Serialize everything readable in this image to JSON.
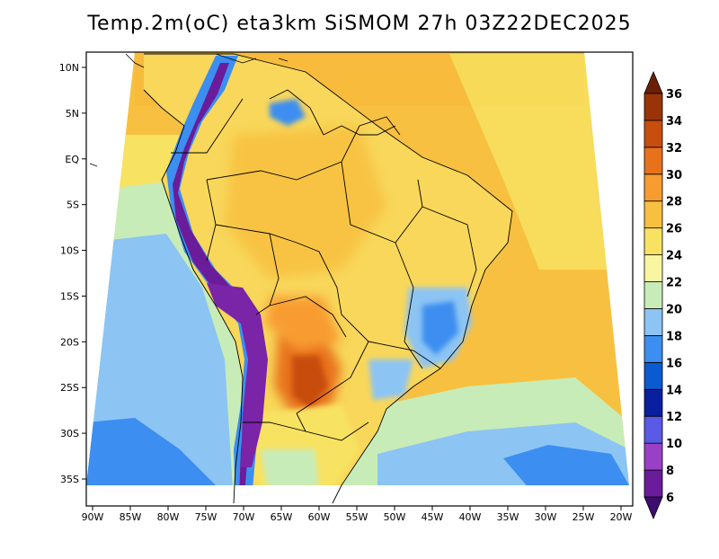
{
  "title": "Temp.2m(oC) eta3km SiSMOM 27h 03Z22DEC2025",
  "y_axis": {
    "labels": [
      "10N",
      "5N",
      "EQ",
      "5S",
      "10S",
      "15S",
      "20S",
      "25S",
      "30S",
      "35S"
    ],
    "values": [
      10,
      5,
      0,
      -5,
      -10,
      -15,
      -20,
      -25,
      -30,
      -35
    ]
  },
  "x_axis": {
    "labels": [
      "90W",
      "85W",
      "80W",
      "75W",
      "70W",
      "65W",
      "60W",
      "55W",
      "50W",
      "45W",
      "40W",
      "35W",
      "30W",
      "25W",
      "20W"
    ],
    "values": [
      -90,
      -85,
      -80,
      -75,
      -70,
      -65,
      -60,
      -55,
      -50,
      -45,
      -40,
      -35,
      -30,
      -25,
      -20
    ]
  },
  "colorbar": {
    "labels": [
      "6",
      "8",
      "10",
      "12",
      "14",
      "16",
      "18",
      "20",
      "22",
      "24",
      "26",
      "28",
      "30",
      "32",
      "34",
      "36"
    ],
    "bins": [
      {
        "min": null,
        "max": 6,
        "color": "#3c0c6e"
      },
      {
        "min": 6,
        "max": 8,
        "color": "#6a1c9a"
      },
      {
        "min": 8,
        "max": 10,
        "color": "#9a40c6"
      },
      {
        "min": 10,
        "max": 12,
        "color": "#5a5ae6"
      },
      {
        "min": 12,
        "max": 14,
        "color": "#0a1ea0"
      },
      {
        "min": 14,
        "max": 16,
        "color": "#0a5ad0"
      },
      {
        "min": 16,
        "max": 18,
        "color": "#3c8ef0"
      },
      {
        "min": 18,
        "max": 20,
        "color": "#8cc4f4"
      },
      {
        "min": 20,
        "max": 22,
        "color": "#c8ecb8"
      },
      {
        "min": 22,
        "max": 24,
        "color": "#f8f6a0"
      },
      {
        "min": 24,
        "max": 26,
        "color": "#f8e262"
      },
      {
        "min": 26,
        "max": 28,
        "color": "#f8c040"
      },
      {
        "min": 28,
        "max": 30,
        "color": "#f89c30"
      },
      {
        "min": 30,
        "max": 32,
        "color": "#e8721c"
      },
      {
        "min": 32,
        "max": 34,
        "color": "#c84e10"
      },
      {
        "min": 34,
        "max": 36,
        "color": "#9a3408"
      },
      {
        "min": 36,
        "max": null,
        "color": "#6a2006"
      }
    ]
  }
}
